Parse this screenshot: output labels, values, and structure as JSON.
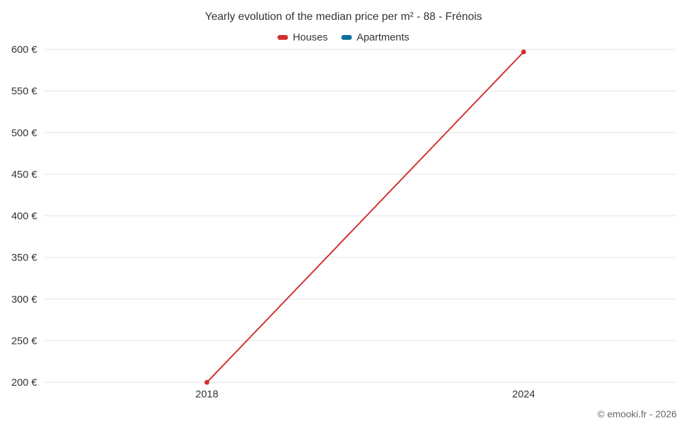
{
  "chart_data": {
    "type": "line",
    "title": "Yearly evolution of the median price per m² - 88 - Frénois",
    "series": [
      {
        "name": "Houses",
        "color": "#d32f2f",
        "x": [
          2018,
          2024
        ],
        "values": [
          200,
          597
        ]
      },
      {
        "name": "Apartments",
        "color": "#0c6e9e",
        "x": [],
        "values": []
      }
    ],
    "ylim": [
      200,
      600
    ],
    "ytick_step": 50,
    "ytick_suffix": " €",
    "xticks": [
      2018,
      2024
    ],
    "xlim": [
      2014.9,
      2026.9
    ],
    "grid": "horizontal",
    "gridline_color": "#e6e6e6",
    "label_color": "#333333",
    "legend_position": "top"
  },
  "footer": {
    "copyright": "© emooki.fr - 2026"
  }
}
